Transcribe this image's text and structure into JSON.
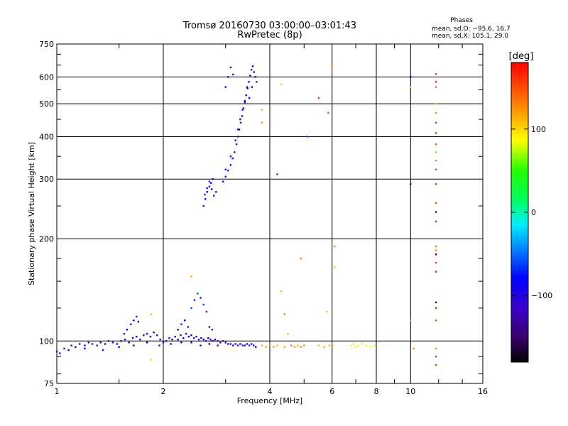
{
  "chart_data": {
    "type": "scatter",
    "title": "Tromsø 20160730 03:00:00–03:01:43",
    "subtitle": "RwPretec (8p)",
    "xlabel": "Frequency [MHz]",
    "ylabel": "Stationary phase Virtual Height [km]",
    "x_scale": "log",
    "y_scale": "log",
    "xlim": [
      1,
      16
    ],
    "ylim": [
      75,
      750
    ],
    "x_ticks": [
      "1",
      "2",
      "4",
      "6",
      "8",
      "10",
      "16"
    ],
    "y_ticks": [
      "75",
      "100",
      "200",
      "300",
      "400",
      "500",
      "600",
      "750"
    ],
    "grid": true,
    "stats": {
      "heading": "Phases",
      "line_o": "mean, sd,O: −95.6, 16.7",
      "line_x": "mean, sd,X: 105.1, 29.0"
    },
    "colorbar": {
      "label": "[deg]",
      "ticks": [
        "100",
        "0",
        "−100"
      ],
      "range": [
        -180,
        180
      ]
    },
    "series": [
      {
        "points": [
          [
            1.0,
            93,
            -100
          ],
          [
            1.02,
            92,
            -110
          ],
          [
            1.05,
            95,
            -120
          ],
          [
            1.08,
            94,
            -100
          ],
          [
            1.1,
            97,
            -110
          ],
          [
            1.13,
            96,
            -100
          ],
          [
            1.16,
            98,
            -120
          ],
          [
            1.2,
            97,
            -100
          ],
          [
            1.23,
            99,
            -110
          ],
          [
            1.26,
            98,
            -100
          ],
          [
            1.3,
            97,
            -120
          ],
          [
            1.33,
            99,
            -100
          ],
          [
            1.37,
            98,
            -110
          ],
          [
            1.4,
            100,
            -100
          ],
          [
            1.44,
            99,
            -120
          ],
          [
            1.48,
            98,
            -100
          ],
          [
            1.52,
            100,
            -110
          ],
          [
            1.56,
            101,
            -100
          ],
          [
            1.6,
            99,
            -120
          ],
          [
            1.64,
            102,
            -100
          ],
          [
            1.68,
            103,
            -110
          ],
          [
            1.72,
            101,
            -100
          ],
          [
            1.76,
            104,
            -120
          ],
          [
            1.8,
            105,
            -100
          ],
          [
            1.84,
            103,
            -110
          ],
          [
            1.88,
            106,
            -100
          ],
          [
            1.92,
            104,
            -120
          ],
          [
            1.96,
            101,
            -100
          ],
          [
            2.0,
            99,
            -110
          ],
          [
            2.04,
            100,
            -100
          ],
          [
            2.08,
            102,
            -120
          ],
          [
            2.12,
            101,
            -100
          ],
          [
            2.16,
            103,
            -110
          ],
          [
            2.2,
            101,
            -100
          ],
          [
            2.24,
            104,
            -120
          ],
          [
            2.28,
            102,
            -100
          ],
          [
            2.32,
            105,
            -110
          ],
          [
            2.36,
            103,
            -100
          ],
          [
            2.4,
            104,
            -120
          ],
          [
            2.44,
            102,
            -100
          ],
          [
            2.48,
            103,
            -110
          ],
          [
            2.52,
            101,
            -100
          ],
          [
            2.56,
            102,
            -120
          ],
          [
            2.6,
            101,
            -100
          ],
          [
            2.64,
            100,
            -110
          ],
          [
            2.68,
            102,
            -100
          ],
          [
            2.72,
            101,
            -120
          ],
          [
            2.76,
            100,
            -100
          ],
          [
            2.8,
            101,
            -110
          ],
          [
            2.85,
            100,
            -100
          ],
          [
            2.9,
            99,
            -120
          ],
          [
            2.95,
            100,
            -100
          ],
          [
            3.0,
            99,
            -110
          ],
          [
            3.05,
            98,
            -100
          ],
          [
            3.1,
            98,
            -120
          ],
          [
            3.15,
            97,
            -100
          ],
          [
            3.2,
            98,
            -110
          ],
          [
            3.25,
            97,
            -100
          ],
          [
            3.3,
            98,
            -120
          ],
          [
            3.35,
            97,
            -100
          ],
          [
            3.4,
            97,
            -110
          ],
          [
            3.45,
            98,
            -100
          ],
          [
            3.5,
            97,
            -120
          ],
          [
            3.55,
            98,
            -100
          ],
          [
            3.6,
            97,
            -110
          ],
          [
            3.65,
            96,
            -100
          ],
          [
            1.2,
            95,
            -80
          ],
          [
            1.35,
            94,
            -90
          ],
          [
            1.5,
            96,
            -80
          ],
          [
            1.65,
            97,
            -90
          ],
          [
            1.8,
            99,
            -80
          ],
          [
            1.95,
            97,
            -90
          ],
          [
            2.1,
            98,
            -80
          ],
          [
            2.25,
            99,
            -90
          ],
          [
            2.4,
            99,
            -80
          ],
          [
            2.55,
            97,
            -90
          ],
          [
            2.7,
            98,
            -80
          ],
          [
            2.85,
            97,
            -90
          ],
          [
            1.55,
            105,
            -70
          ],
          [
            1.58,
            108,
            -80
          ],
          [
            1.62,
            112,
            -70
          ],
          [
            1.65,
            115,
            -80
          ],
          [
            1.68,
            118,
            -70
          ],
          [
            1.7,
            114,
            -80
          ],
          [
            2.4,
            125,
            -60
          ],
          [
            2.45,
            132,
            -70
          ],
          [
            2.5,
            138,
            -60
          ],
          [
            2.55,
            134,
            -70
          ],
          [
            2.6,
            128,
            -60
          ],
          [
            2.65,
            122,
            -70
          ],
          [
            2.2,
            108,
            -80
          ],
          [
            2.25,
            112,
            -70
          ],
          [
            2.3,
            115,
            -80
          ],
          [
            2.35,
            110,
            -70
          ],
          [
            2.7,
            110,
            -80
          ],
          [
            2.75,
            108,
            -70
          ]
        ]
      },
      {
        "points": [
          [
            2.6,
            250,
            -90
          ],
          [
            2.63,
            262,
            -80
          ],
          [
            2.66,
            275,
            -90
          ],
          [
            2.7,
            285,
            -80
          ],
          [
            2.73,
            292,
            -90
          ],
          [
            2.76,
            300,
            -80
          ],
          [
            2.62,
            270,
            -70
          ],
          [
            2.66,
            282,
            -80
          ],
          [
            2.7,
            295,
            -70
          ],
          [
            2.74,
            280,
            -80
          ],
          [
            2.78,
            268,
            -70
          ],
          [
            2.82,
            275,
            -80
          ],
          [
            2.95,
            295,
            -100
          ],
          [
            3.0,
            305,
            -110
          ],
          [
            3.05,
            318,
            -100
          ],
          [
            3.1,
            330,
            -110
          ],
          [
            3.14,
            345,
            -100
          ],
          [
            3.18,
            360,
            -110
          ],
          [
            3.22,
            380,
            -100
          ],
          [
            3.25,
            400,
            -110
          ],
          [
            3.28,
            420,
            -100
          ],
          [
            3.31,
            440,
            -110
          ],
          [
            3.34,
            460,
            -100
          ],
          [
            3.37,
            485,
            -110
          ],
          [
            3.4,
            505,
            -100
          ],
          [
            3.43,
            530,
            -110
          ],
          [
            3.46,
            555,
            -100
          ],
          [
            3.49,
            580,
            -110
          ],
          [
            3.52,
            605,
            -100
          ],
          [
            3.55,
            630,
            -110
          ],
          [
            3.58,
            645,
            -100
          ],
          [
            3.61,
            620,
            -110
          ],
          [
            3.64,
            600,
            -100
          ],
          [
            3.67,
            580,
            -110
          ],
          [
            3.5,
            520,
            -90
          ],
          [
            3.56,
            560,
            -100
          ],
          [
            3.2,
            390,
            -120
          ],
          [
            3.3,
            450,
            -130
          ],
          [
            3.4,
            510,
            -120
          ],
          [
            3.45,
            560,
            -130
          ],
          [
            3.05,
            600,
            -120
          ],
          [
            3.1,
            640,
            -130
          ],
          [
            3.0,
            560,
            -110
          ],
          [
            3.15,
            610,
            -110
          ],
          [
            3.35,
            480,
            -95
          ],
          [
            3.25,
            420,
            -95
          ],
          [
            3.1,
            350,
            -95
          ],
          [
            3.0,
            320,
            -95
          ]
        ]
      },
      {
        "points": [
          [
            3.8,
            97,
            110
          ],
          [
            3.9,
            96,
            120
          ],
          [
            4.0,
            97,
            130
          ],
          [
            4.1,
            96,
            120
          ],
          [
            4.2,
            97,
            110
          ],
          [
            4.4,
            96,
            120
          ],
          [
            4.5,
            105,
            110
          ],
          [
            4.6,
            97,
            130
          ],
          [
            4.7,
            96,
            120
          ],
          [
            4.8,
            97,
            110
          ],
          [
            4.9,
            96,
            130
          ],
          [
            5.0,
            97,
            120
          ],
          [
            5.5,
            97,
            110
          ],
          [
            5.7,
            96,
            120
          ],
          [
            5.9,
            97,
            110
          ],
          [
            6.0,
            96,
            120
          ],
          [
            6.8,
            97,
            90
          ],
          [
            6.9,
            98,
            80
          ],
          [
            7.0,
            96,
            85
          ],
          [
            7.1,
            97,
            90
          ],
          [
            7.3,
            98,
            80
          ],
          [
            7.5,
            97,
            90
          ],
          [
            7.7,
            96,
            85
          ],
          [
            7.9,
            97,
            80
          ],
          [
            4.3,
            140,
            110
          ],
          [
            4.4,
            120,
            130
          ],
          [
            5.8,
            122,
            110
          ],
          [
            6.1,
            190,
            130
          ],
          [
            6.1,
            165,
            110
          ],
          [
            1.85,
            88,
            100
          ],
          [
            1.85,
            120,
            110
          ],
          [
            2.4,
            155,
            120
          ],
          [
            6.0,
            640,
            120
          ],
          [
            4.9,
            175,
            130
          ],
          [
            4.3,
            570,
            100
          ],
          [
            5.5,
            520,
            160
          ],
          [
            5.85,
            470,
            150
          ],
          [
            3.8,
            480,
            110
          ],
          [
            3.8,
            440,
            120
          ],
          [
            5.1,
            400,
            -60
          ],
          [
            4.2,
            310,
            -60
          ],
          [
            10.0,
            290,
            -70
          ],
          [
            10.2,
            95,
            130
          ],
          [
            10.0,
            115,
            110
          ],
          [
            10.0,
            560,
            100
          ],
          [
            10.0,
            600,
            -130
          ]
        ]
      },
      {
        "points": [
          [
            11.8,
            612,
            160
          ],
          [
            11.8,
            580,
            170
          ],
          [
            11.8,
            560,
            140
          ],
          [
            11.8,
            500,
            110
          ],
          [
            11.8,
            470,
            130
          ],
          [
            11.8,
            440,
            160
          ],
          [
            11.8,
            410,
            170
          ],
          [
            11.8,
            380,
            150
          ],
          [
            11.8,
            360,
            60
          ],
          [
            11.8,
            340,
            130
          ],
          [
            11.8,
            320,
            160
          ],
          [
            11.8,
            290,
            170
          ],
          [
            11.8,
            255,
            150
          ],
          [
            11.8,
            240,
            -150
          ],
          [
            11.8,
            225,
            170
          ],
          [
            11.8,
            190,
            140
          ],
          [
            11.8,
            180,
            -150
          ],
          [
            11.8,
            170,
            160
          ],
          [
            11.8,
            160,
            170
          ],
          [
            11.8,
            130,
            -150
          ],
          [
            11.8,
            125,
            170
          ],
          [
            11.8,
            115,
            150
          ],
          [
            11.8,
            95,
            130
          ],
          [
            11.8,
            90,
            170
          ],
          [
            11.8,
            85,
            160
          ],
          [
            11.8,
            185,
            130
          ]
        ]
      }
    ]
  }
}
